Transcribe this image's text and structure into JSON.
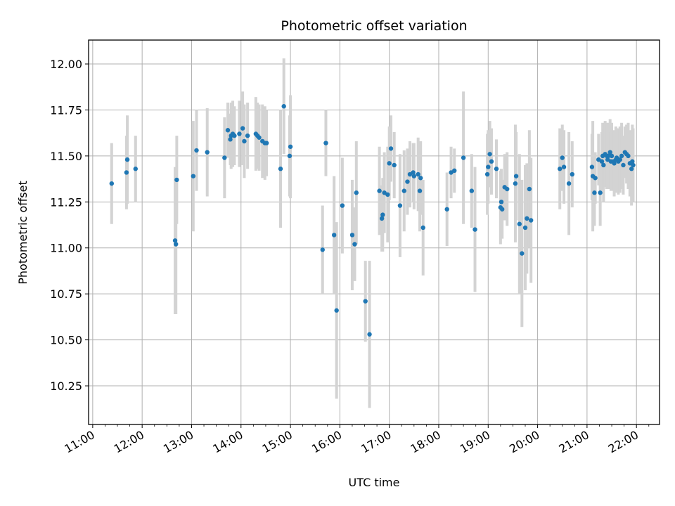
{
  "chart_data": {
    "type": "scatter",
    "title": "Photometric offset variation",
    "xlabel": "UTC time",
    "ylabel": "Photometric offset",
    "grid": true,
    "xlim": [
      "10:55",
      "22:28"
    ],
    "ylim": [
      10.04,
      12.13
    ],
    "x_ticks": [
      "11:00",
      "12:00",
      "13:00",
      "14:00",
      "15:00",
      "16:00",
      "17:00",
      "18:00",
      "19:00",
      "20:00",
      "21:00",
      "22:00"
    ],
    "y_ticks": [
      "10.25",
      "10.50",
      "10.75",
      "11.00",
      "11.25",
      "11.50",
      "11.75",
      "12.00"
    ],
    "colors": {
      "marker": "#1f77b4",
      "errorbar": "#d3d3d3",
      "grid": "#b0b0b0"
    },
    "series": [
      {
        "x": [
          "11:23",
          "11:41",
          "11:42",
          "11:52",
          "12:40",
          "12:41",
          "12:42",
          "13:02",
          "13:06",
          "13:19",
          "13:40",
          "13:44",
          "13:47",
          "13:48",
          "13:50",
          "13:52",
          "13:58",
          "14:02",
          "14:04",
          "14:08",
          "14:18",
          "14:20",
          "14:22",
          "14:26",
          "14:29",
          "14:31",
          "14:48",
          "14:52",
          "14:59",
          "15:00",
          "15:39",
          "15:43",
          "15:53",
          "15:56",
          "16:03",
          "16:15",
          "16:18",
          "16:20",
          "16:31",
          "16:36",
          "16:48",
          "16:51",
          "16:52",
          "16:54",
          "16:58",
          "17:00",
          "17:02",
          "17:06",
          "17:13",
          "17:18",
          "17:22",
          "17:25",
          "17:29",
          "17:30",
          "17:35",
          "17:37",
          "17:38",
          "17:41",
          "18:10",
          "18:15",
          "18:19",
          "18:30",
          "18:40",
          "18:44",
          "18:59",
          "19:00",
          "19:02",
          "19:04",
          "19:10",
          "19:15",
          "19:16",
          "19:17",
          "19:20",
          "19:23",
          "19:33",
          "19:34",
          "19:38",
          "19:41",
          "19:45",
          "19:47",
          "19:50",
          "19:52",
          "20:27",
          "20:30",
          "20:32",
          "20:38",
          "20:42",
          "21:06",
          "21:07",
          "21:09",
          "21:10",
          "21:14",
          "21:16",
          "21:18",
          "21:19",
          "21:20",
          "21:22",
          "21:24",
          "21:25",
          "21:26",
          "21:28",
          "21:29",
          "21:30",
          "21:32",
          "21:33",
          "21:35",
          "21:36",
          "21:38",
          "21:40",
          "21:42",
          "21:44",
          "21:46",
          "21:48",
          "21:50",
          "21:52",
          "21:54",
          "21:55",
          "21:56"
        ],
        "y": [
          11.35,
          11.41,
          11.48,
          11.43,
          11.04,
          11.02,
          11.37,
          11.39,
          11.53,
          11.52,
          11.49,
          11.64,
          11.59,
          11.61,
          11.62,
          11.61,
          11.62,
          11.65,
          11.58,
          11.61,
          11.62,
          11.61,
          11.6,
          11.58,
          11.57,
          11.57,
          11.43,
          11.77,
          11.5,
          11.55,
          10.99,
          11.57,
          11.07,
          10.66,
          11.23,
          11.07,
          11.02,
          11.3,
          10.71,
          10.53,
          11.31,
          11.16,
          11.18,
          11.3,
          11.29,
          11.46,
          11.54,
          11.45,
          11.23,
          11.31,
          11.36,
          11.4,
          11.41,
          11.39,
          11.4,
          11.31,
          11.38,
          11.11,
          11.21,
          11.41,
          11.42,
          11.49,
          11.31,
          11.1,
          11.4,
          11.44,
          11.51,
          11.47,
          11.43,
          11.22,
          11.25,
          11.21,
          11.33,
          11.32,
          11.35,
          11.39,
          11.13,
          10.97,
          11.11,
          11.16,
          11.32,
          11.15,
          11.43,
          11.49,
          11.44,
          11.35,
          11.4,
          11.44,
          11.39,
          11.3,
          11.38,
          11.48,
          11.3,
          11.47,
          11.5,
          11.45,
          11.51,
          11.5,
          11.48,
          11.5,
          11.52,
          11.47,
          11.5,
          11.47,
          11.46,
          11.48,
          11.49,
          11.47,
          11.48,
          11.5,
          11.45,
          11.52,
          11.51,
          11.5,
          11.46,
          11.43,
          11.47,
          11.45
        ],
        "err": [
          0.22,
          0.2,
          0.24,
          0.18,
          0.4,
          0.38,
          0.24,
          0.3,
          0.22,
          0.24,
          0.22,
          0.15,
          0.14,
          0.18,
          0.18,
          0.16,
          0.18,
          0.2,
          0.2,
          0.18,
          0.2,
          0.18,
          0.18,
          0.2,
          0.2,
          0.18,
          0.32,
          0.26,
          0.22,
          0.28,
          0.24,
          0.18,
          0.32,
          0.48,
          0.26,
          0.3,
          0.2,
          0.28,
          0.22,
          0.4,
          0.24,
          0.18,
          0.2,
          0.22,
          0.26,
          0.2,
          0.18,
          0.18,
          0.28,
          0.22,
          0.18,
          0.18,
          0.16,
          0.18,
          0.2,
          0.22,
          0.2,
          0.26,
          0.2,
          0.14,
          0.12,
          0.36,
          0.2,
          0.34,
          0.22,
          0.2,
          0.18,
          0.18,
          0.16,
          0.2,
          0.18,
          0.16,
          0.18,
          0.2,
          0.32,
          0.24,
          0.38,
          0.4,
          0.34,
          0.3,
          0.32,
          0.34,
          0.22,
          0.18,
          0.2,
          0.28,
          0.18,
          0.18,
          0.3,
          0.18,
          0.14,
          0.14,
          0.18,
          0.16,
          0.18,
          0.2,
          0.18,
          0.18,
          0.16,
          0.18,
          0.18,
          0.16,
          0.18,
          0.16,
          0.18,
          0.18,
          0.16,
          0.18,
          0.18,
          0.18,
          0.16,
          0.14,
          0.16,
          0.18,
          0.18,
          0.2,
          0.2,
          0.2
        ]
      }
    ]
  }
}
